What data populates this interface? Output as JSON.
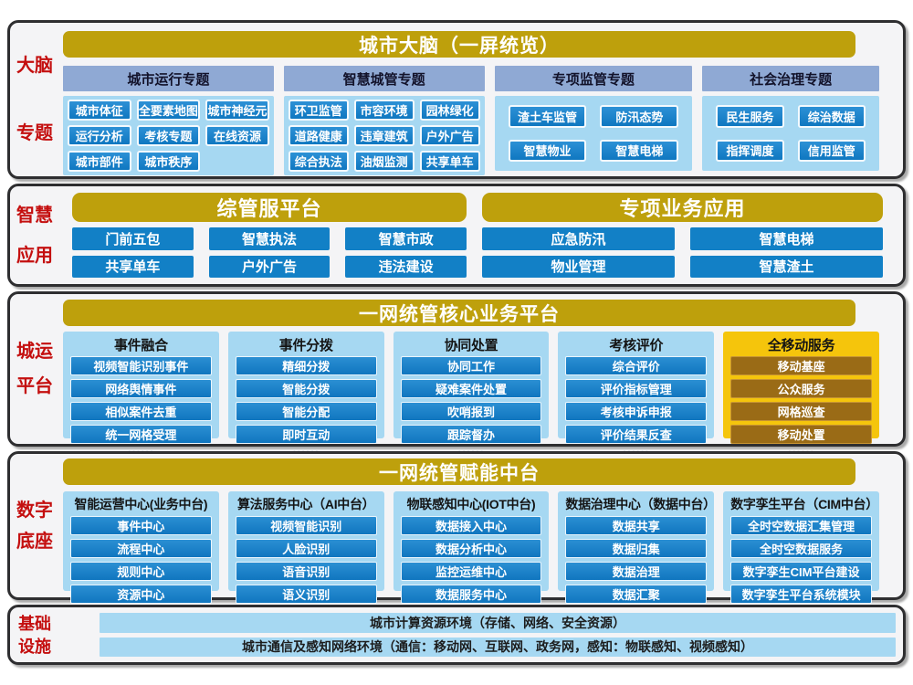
{
  "colors": {
    "banner_gold": "#BEA00C",
    "label_red": "#C40F0F",
    "button_blue": "#1280C6",
    "panel_light_blue": "#A6D8F2",
    "steel_header_blue": "#8FA9D4",
    "gold_panel": "#F5C50C",
    "brown_button": "#9A6B16",
    "section_border": "#2E2E30"
  },
  "sections": [
    {
      "id": "brain",
      "type": "topics",
      "label": [
        "大脑",
        "专题"
      ],
      "banner": "城市大脑（一屏统览）",
      "columns": [
        {
          "header": "城市运行专题",
          "per_row": 3,
          "buttons": [
            "城市体征",
            "全要素地图",
            "城市神经元",
            "运行分析",
            "考核专题",
            "在线资源",
            "城市部件",
            "城市秩序"
          ]
        },
        {
          "header": "智慧城管专题",
          "per_row": 3,
          "buttons": [
            "环卫监管",
            "市容环境",
            "园林绿化",
            "道路健康",
            "违章建筑",
            "户外广告",
            "综合执法",
            "油烟监测",
            "共享单车"
          ]
        },
        {
          "header": "专项监管专题",
          "per_row": 2,
          "inset": true,
          "buttons": [
            "渣土车监管",
            "防汛态势",
            "智慧物业",
            "智慧电梯"
          ]
        },
        {
          "header": "社会治理专题",
          "per_row": 2,
          "inset": true,
          "buttons": [
            "民生服务",
            "综治数据",
            "指挥调度",
            "信用监管"
          ]
        }
      ]
    },
    {
      "id": "apps",
      "type": "apps",
      "label": [
        "智慧",
        "应用"
      ],
      "groups": [
        {
          "banner": "综管服平台",
          "per_row": 3,
          "buttons": [
            "门前五包",
            "智慧执法",
            "智慧市政",
            "共享单车",
            "户外广告",
            "违法建设"
          ]
        },
        {
          "banner": "专项业务应用",
          "per_row": 2,
          "buttons": [
            "应急防汛",
            "智慧电梯",
            "物业管理",
            "智慧渣土"
          ]
        }
      ]
    },
    {
      "id": "core",
      "type": "core",
      "label": [
        "城运",
        "平台"
      ],
      "banner": "一网统管核心业务平台",
      "columns": [
        {
          "header": "事件融合",
          "theme": "blue",
          "dots": "......",
          "buttons": [
            "视频智能识别事件",
            "网络舆情事件",
            "相似案件去重",
            "统一网格受理"
          ]
        },
        {
          "header": "事件分拨",
          "theme": "blue",
          "dots": "......",
          "buttons": [
            "精细分拨",
            "智能分拨",
            "智能分配",
            "即时互动"
          ]
        },
        {
          "header": "协同处置",
          "theme": "blue",
          "dots": "......",
          "buttons": [
            "协同工作",
            "疑难案件处置",
            "吹哨报到",
            "跟踪督办"
          ]
        },
        {
          "header": "考核评价",
          "theme": "blue",
          "dots": "......",
          "buttons": [
            "综合评价",
            "评价指标管理",
            "考核申诉申报",
            "评价结果反查"
          ]
        },
        {
          "header": "全移动服务",
          "theme": "gold",
          "dots": "......",
          "buttons": [
            "移动基座",
            "公众服务",
            "网格巡查",
            "移动处置"
          ]
        }
      ]
    },
    {
      "id": "platform",
      "type": "platform",
      "label": [
        "数字",
        "底座"
      ],
      "banner": "一网统管赋能中台",
      "columns": [
        {
          "header": "智能运营中心(业务中台)",
          "theme": "blue",
          "buttons": [
            "事件中心",
            "流程中心",
            "规则中心",
            "资源中心"
          ]
        },
        {
          "header": "算法服务中心（AI中台）",
          "theme": "blue",
          "buttons": [
            "视频智能识别",
            "人脸识别",
            "语音识别",
            "语义识别"
          ]
        },
        {
          "header": "物联感知中心(IOT中台)",
          "theme": "blue",
          "buttons": [
            "数据接入中心",
            "数据分析中心",
            "监控运维中心",
            "数据服务中心"
          ]
        },
        {
          "header": "数据治理中心（数据中台）",
          "theme": "blue",
          "buttons": [
            "数据共享",
            "数据归集",
            "数据治理",
            "数据汇聚"
          ]
        },
        {
          "header": "数字孪生平台（CIM中台）",
          "theme": "blue",
          "buttons": [
            "全时空数据汇集管理",
            "全时空数据服务",
            "数字孪生CIM平台建设",
            "数字孪生平台系统模块"
          ]
        }
      ]
    },
    {
      "id": "infra",
      "type": "bars",
      "label": [
        "基础",
        "设施"
      ],
      "bars": [
        "城市计算资源环境（存储、网络、安全资源）",
        "城市通信及感知网络环境（通信：移动网、互联网、政务网，感知：物联感知、视频感知）"
      ]
    }
  ]
}
